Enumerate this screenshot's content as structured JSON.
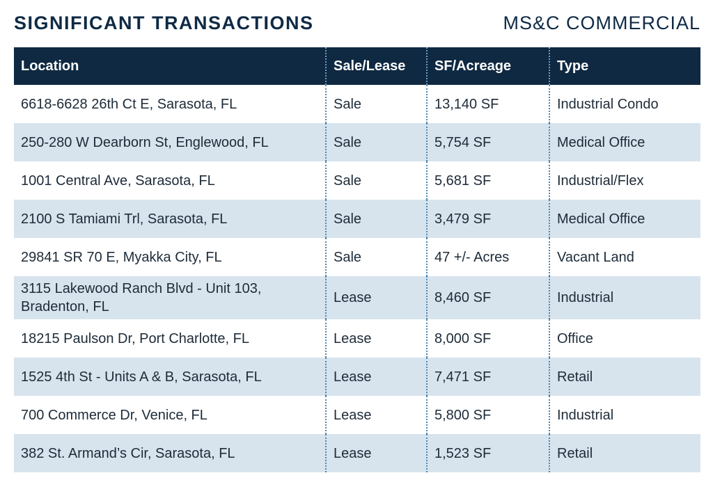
{
  "header": {
    "title": "SIGNIFICANT TRANSACTIONS",
    "brand": "MS&C COMMERCIAL"
  },
  "table": {
    "columns": [
      "Location",
      "Sale/Lease",
      "SF/Acreage",
      "Type"
    ],
    "rows": [
      [
        "6618-6628 26th Ct E, Sarasota, FL",
        "Sale",
        "13,140 SF",
        "Industrial Condo"
      ],
      [
        "250-280 W Dearborn St, Englewood, FL",
        "Sale",
        "5,754 SF",
        "Medical Office"
      ],
      [
        "1001 Central Ave, Sarasota, FL",
        "Sale",
        "5,681 SF",
        "Industrial/Flex"
      ],
      [
        "2100 S Tamiami Trl, Sarasota, FL",
        "Sale",
        "3,479 SF",
        "Medical Office"
      ],
      [
        "29841 SR 70 E, Myakka City, FL",
        "Sale",
        "47 +/- Acres",
        "Vacant Land"
      ],
      [
        "3115 Lakewood Ranch Blvd - Unit 103, Bradenton, FL",
        "Lease",
        "8,460 SF",
        "Industrial"
      ],
      [
        "18215 Paulson Dr, Port Charlotte, FL",
        "Lease",
        "8,000 SF",
        "Office"
      ],
      [
        "1525 4th St - Units A & B, Sarasota, FL",
        "Lease",
        "7,471 SF",
        "Retail"
      ],
      [
        "700 Commerce Dr, Venice, FL",
        "Lease",
        "5,800 SF",
        "Industrial"
      ],
      [
        "382 St. Armand’s Cir, Sarasota, FL",
        "Lease",
        "1,523 SF",
        "Retail"
      ]
    ]
  },
  "colors": {
    "header_bg": "#0f2942",
    "title_text": "#0e2a44",
    "stripe": "#d7e4ee",
    "divider": "#4a86b4"
  }
}
